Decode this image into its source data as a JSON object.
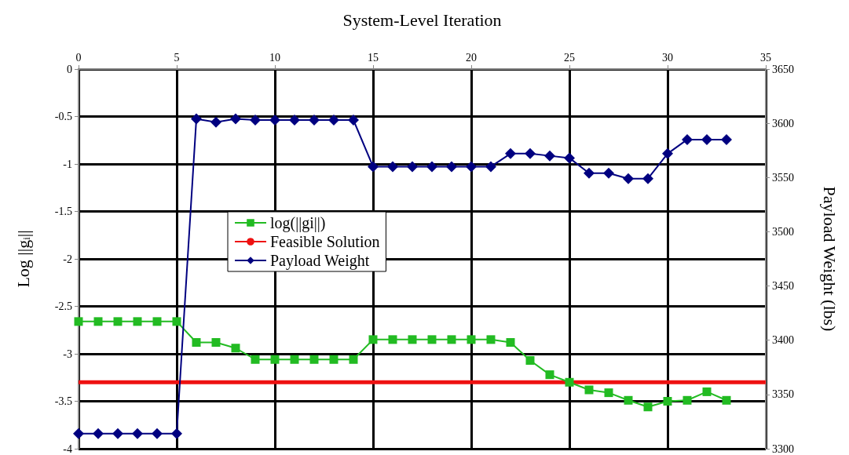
{
  "chart_data": {
    "type": "line",
    "xlabel": "System-Level Iteration",
    "ylabel": "Log ||g$_{i}$||",
    "y2label": "Payload Weight (lbs)",
    "xlim": [
      0,
      35
    ],
    "xticks": [
      0,
      5,
      10,
      15,
      20,
      25,
      30,
      35
    ],
    "ylim": [
      -4,
      0
    ],
    "yticks": [
      -4,
      -3.5,
      -3,
      -2.5,
      -2,
      -1.5,
      -1,
      -0.5,
      0
    ],
    "y2lim": [
      3300,
      3650
    ],
    "y2ticks": [
      3300,
      3350,
      3400,
      3450,
      3500,
      3550,
      3600,
      3650
    ],
    "grid": true,
    "legend": "left",
    "series": [
      {
        "name": "log(||gi||)",
        "color": "#22bb22",
        "marker": "square",
        "x": [
          0,
          1,
          2,
          3,
          4,
          5,
          6,
          7,
          8,
          9,
          10,
          11,
          12,
          13,
          14,
          15,
          16,
          17,
          18,
          19,
          20,
          21,
          22,
          23,
          24,
          25,
          26,
          27,
          28,
          29,
          30,
          31,
          32,
          33
        ],
        "values": [
          -2.66,
          -2.66,
          -2.66,
          -2.66,
          -2.66,
          -2.66,
          -2.88,
          -2.88,
          -2.94,
          -3.06,
          -3.06,
          -3.06,
          -3.06,
          -3.06,
          -3.06,
          -2.85,
          -2.85,
          -2.85,
          -2.85,
          -2.85,
          -2.85,
          -2.85,
          -2.88,
          -3.07,
          -3.22,
          -3.3,
          -3.38,
          -3.41,
          -3.49,
          -3.56,
          -3.5,
          -3.49,
          -3.4,
          -3.49
        ]
      },
      {
        "name": "Feasible Solution",
        "color": "#ee1111",
        "marker": "none",
        "x": [
          0,
          35
        ],
        "values": [
          -3.3,
          -3.3
        ]
      },
      {
        "name": "Payload Weight",
        "color": "#000080",
        "marker": "diamond",
        "axis": "y2",
        "x": [
          0,
          1,
          2,
          3,
          4,
          5,
          6,
          7,
          8,
          9,
          10,
          11,
          12,
          13,
          14,
          15,
          16,
          17,
          18,
          19,
          20,
          21,
          22,
          23,
          24,
          25,
          26,
          27,
          28,
          29,
          30,
          31,
          32,
          33
        ],
        "values": [
          3314,
          3314,
          3314,
          3314,
          3314,
          3314,
          3604,
          3601,
          3604,
          3603,
          3603,
          3603,
          3603,
          3603,
          3603,
          3560,
          3560,
          3560,
          3560,
          3560,
          3560,
          3560,
          3572,
          3572,
          3570,
          3568,
          3554,
          3554,
          3549,
          3549,
          3572,
          3585,
          3585,
          3585
        ]
      }
    ]
  }
}
